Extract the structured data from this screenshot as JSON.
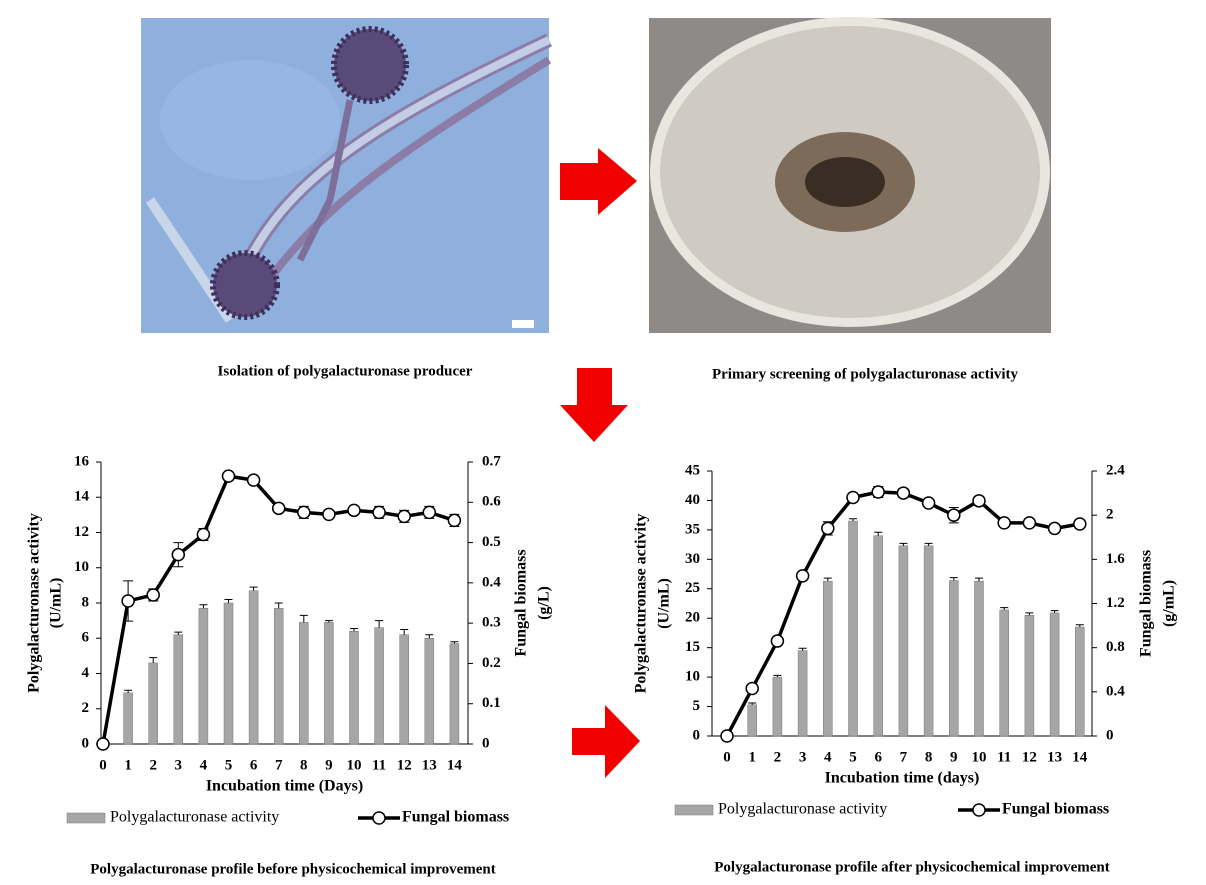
{
  "captions": [
    "Isolation of polygalacturonase producer",
    "Primary screening of polygalacturonase activity",
    "Polygalacturonase profile before physicochemical improvement",
    "Polygalacturonase profile after physicochemical improvement"
  ],
  "chart_data": [
    {
      "type": "bar_line",
      "xlabel": "Incubation time (Days)",
      "ylabel": [
        "Polygalacturonase activity",
        "(U/mL)"
      ],
      "y2label": [
        "Fungal biomass",
        "(g/L)"
      ],
      "categories": [
        "0",
        "1",
        "2",
        "3",
        "4",
        "5",
        "6",
        "7",
        "8",
        "9",
        "10",
        "11",
        "12",
        "13",
        "14"
      ],
      "ylim": [
        0,
        16
      ],
      "yticks": [
        0,
        2,
        4,
        6,
        8,
        10,
        12,
        14,
        16
      ],
      "y2lim": [
        0,
        0.7
      ],
      "y2ticks": [
        0,
        0.1,
        0.2,
        0.3,
        0.4,
        0.5,
        0.6,
        0.7
      ],
      "series": [
        {
          "name": "Polygalacturonase activity",
          "mark": "bar",
          "color": "#a6a6a6",
          "values": [
            0,
            2.9,
            4.6,
            6.2,
            7.7,
            8.0,
            8.7,
            7.7,
            6.9,
            6.9,
            6.4,
            6.6,
            6.2,
            6.0,
            5.7
          ],
          "errors": [
            0,
            0.15,
            0.3,
            0.15,
            0.2,
            0.2,
            0.2,
            0.3,
            0.4,
            0.1,
            0.15,
            0.4,
            0.3,
            0.2,
            0.1
          ]
        },
        {
          "name": "Fungal biomass",
          "mark": "line",
          "axis": "y2",
          "color": "#000000",
          "values": [
            0,
            0.355,
            0.37,
            0.47,
            0.52,
            0.665,
            0.655,
            0.585,
            0.575,
            0.57,
            0.58,
            0.575,
            0.565,
            0.575,
            0.555
          ],
          "errors": [
            0,
            0.05,
            0.015,
            0.03,
            0.015,
            0.01,
            0.01,
            0.01,
            0.015,
            0.01,
            0.005,
            0.015,
            0.015,
            0.015,
            0.015
          ]
        }
      ]
    },
    {
      "type": "bar_line",
      "xlabel": "Incubation time (days)",
      "ylabel": [
        "Polygalacturonase activity",
        "(U/mL)"
      ],
      "y2label": [
        "Fungal biomass",
        "(g/mL)"
      ],
      "categories": [
        "0",
        "1",
        "2",
        "3",
        "4",
        "5",
        "6",
        "7",
        "8",
        "9",
        "10",
        "11",
        "12",
        "13",
        "14"
      ],
      "ylim": [
        0,
        45
      ],
      "yticks": [
        0,
        5,
        10,
        15,
        20,
        25,
        30,
        35,
        40,
        45
      ],
      "y2lim": [
        0,
        2.4
      ],
      "y2ticks": [
        0,
        0.4,
        0.8,
        1.2,
        1.6,
        2,
        2.4
      ],
      "series": [
        {
          "name": "Polygalacturonase activity",
          "mark": "bar",
          "color": "#a6a6a6",
          "values": [
            0,
            5.3,
            10,
            14.5,
            26.3,
            36.5,
            34,
            32.3,
            32.3,
            26.4,
            26.3,
            21.4,
            20.5,
            20.9,
            18.5
          ],
          "errors": [
            0,
            0.3,
            0.3,
            0.4,
            0.5,
            0.4,
            0.6,
            0.4,
            0.4,
            0.5,
            0.5,
            0.4,
            0.4,
            0.4,
            0.4
          ]
        },
        {
          "name": "Fungal biomass",
          "mark": "line",
          "axis": "y2",
          "color": "#000000",
          "values": [
            0,
            0.43,
            0.86,
            1.45,
            1.88,
            2.16,
            2.21,
            2.2,
            2.11,
            2.0,
            2.13,
            1.93,
            1.93,
            1.88,
            1.92
          ],
          "errors": [
            0,
            0,
            0,
            0,
            0.06,
            0.04,
            0.05,
            0.04,
            0.02,
            0.07,
            0.04,
            0.02,
            0.02,
            0.04,
            0.03
          ]
        }
      ]
    }
  ]
}
